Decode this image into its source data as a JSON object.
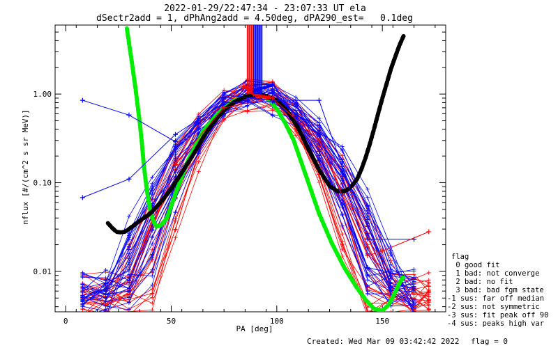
{
  "chart_data": {
    "type": "line",
    "title": "2022-01-29/22:47:34 - 23:07:33 UT ela",
    "subtitle": "dSectr2add = 1, dPhAng2add = 4.50deg, dPA290_est=   0.1deg",
    "xlabel": "PA [deg]",
    "ylabel": "nflux [#/(cm^2 s sr MeV)]",
    "xlim": [
      -5,
      180
    ],
    "ylim": [
      0.0035,
      6.0
    ],
    "yscale": "log",
    "xticks": [
      0,
      50,
      100,
      150
    ],
    "xtick_labels": [
      "0",
      "50",
      "100",
      "150"
    ],
    "yticks": [
      0.01,
      0.1,
      1.0
    ],
    "ytick_labels": [
      "0.01",
      "0.10",
      "1.00"
    ],
    "grid": false,
    "series": [
      {
        "color": "#00ee00",
        "style": "thick-dashed",
        "x": [
          29,
          31,
          33,
          35,
          36,
          37,
          38,
          39,
          40,
          41,
          42,
          43,
          45,
          48,
          52,
          58,
          65,
          72,
          80,
          88,
          92,
          96,
          100,
          104,
          108,
          112,
          116,
          120,
          126,
          132,
          138,
          142,
          146,
          150,
          153,
          156,
          158,
          160
        ],
        "y": [
          5.5,
          2.6,
          1.2,
          0.5,
          0.3,
          0.16,
          0.1,
          0.068,
          0.05,
          0.04,
          0.035,
          0.032,
          0.033,
          0.04,
          0.075,
          0.18,
          0.38,
          0.6,
          0.85,
          0.98,
          0.97,
          0.88,
          0.68,
          0.47,
          0.3,
          0.16,
          0.085,
          0.045,
          0.021,
          0.011,
          0.0065,
          0.0048,
          0.0038,
          0.0036,
          0.0042,
          0.0058,
          0.0073,
          0.0088
        ]
      },
      {
        "color": "#000000",
        "style": "thick-dashed",
        "x": [
          20,
          22,
          24,
          26,
          28,
          30,
          35,
          40,
          45,
          50,
          55,
          60,
          65,
          70,
          75,
          80,
          85,
          90,
          95,
          100,
          105,
          110,
          115,
          120,
          125,
          128,
          130,
          132,
          134,
          136,
          138,
          140,
          142,
          144,
          146,
          148,
          150,
          152,
          154,
          156,
          158,
          160
        ],
        "y": [
          0.035,
          0.031,
          0.028,
          0.0275,
          0.028,
          0.03,
          0.037,
          0.045,
          0.06,
          0.085,
          0.13,
          0.2,
          0.32,
          0.48,
          0.66,
          0.82,
          0.93,
          0.98,
          0.95,
          0.85,
          0.64,
          0.42,
          0.24,
          0.14,
          0.092,
          0.082,
          0.079,
          0.08,
          0.085,
          0.095,
          0.11,
          0.14,
          0.19,
          0.27,
          0.4,
          0.6,
          0.9,
          1.3,
          1.9,
          2.6,
          3.5,
          4.5
        ]
      },
      {
        "color": "#ff0000",
        "style": "center-thick",
        "x": [
          84,
          85,
          86,
          87,
          88,
          89,
          90,
          91,
          92,
          93,
          94,
          95,
          96,
          97
        ],
        "y": [
          1.2,
          1.22,
          1.15,
          1.1,
          1.05,
          1.0,
          0.98,
          0.97,
          0.95,
          0.94,
          0.93,
          0.92,
          0.92,
          0.91
        ]
      },
      {
        "color": "#0000ff",
        "style": "center-thick",
        "x": [
          88,
          90,
          92,
          94,
          96,
          98
        ],
        "y": [
          1.05,
          1.1,
          1.15,
          1.18,
          1.22,
          1.25
        ]
      },
      {
        "color": "#0000ff",
        "style": "thin-outlier",
        "x": [
          8,
          30,
          52,
          75,
          98,
          120,
          143,
          165
        ],
        "y": [
          0.85,
          0.58,
          0.29,
          0.98,
          0.85,
          0.85,
          0.023,
          0.023
        ]
      },
      {
        "color": "#0000ff",
        "style": "thin-outlier",
        "x": [
          8,
          30,
          52,
          75,
          98,
          120,
          143,
          165
        ],
        "y": [
          0.068,
          0.11,
          0.35,
          0.8,
          0.82,
          0.35,
          0.011,
          0.0085
        ]
      },
      {
        "color": "#ff0000",
        "style": "thin-outlier",
        "x": [
          52,
          75,
          98,
          120,
          143,
          150,
          172
        ],
        "y": [
          0.16,
          0.7,
          0.9,
          0.3,
          0.015,
          0.017,
          0.028
        ]
      }
    ],
    "legend": {
      "placement": "right",
      "title": "flag",
      "entries": [
        " 0 good fit",
        " 1 bad: not converge",
        " 2 bad: no fit",
        " 3 bad: bad fgm state",
        "-1 sus: far off median",
        "-2 sus: not symmetric",
        "-3 sus: fit peak off 90",
        "-4 sus: peaks high var"
      ]
    }
  },
  "footer": {
    "created": "Created: Wed Mar 09 03:42:42 2022",
    "flag": "flag = 0"
  },
  "colors": {
    "red": "#ff0000",
    "blue": "#0000ff",
    "green": "#00ee00",
    "black": "#000000"
  }
}
